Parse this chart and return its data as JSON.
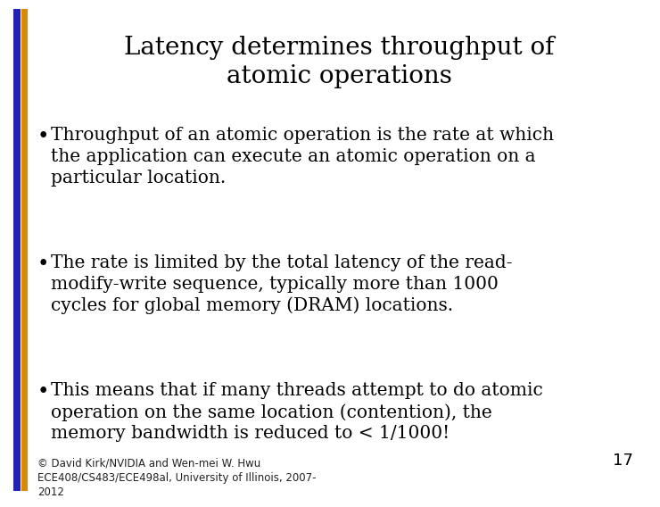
{
  "title_line1": "Latency determines throughput of",
  "title_line2": "atomic operations",
  "bullet1_line1": "Throughput of an atomic operation is the rate at which",
  "bullet1_line2": "the application can execute an atomic operation on a",
  "bullet1_line3": "particular location.",
  "bullet2_line1": "The rate is limited by the total latency of the read-",
  "bullet2_line2": "modify-write sequence, typically more than 1000",
  "bullet2_line3": "cycles for global memory (DRAM) locations.",
  "bullet3_line1": "This means that if many threads attempt to do atomic",
  "bullet3_line2": "operation on the same location (contention), the",
  "bullet3_line3": "memory bandwidth is reduced to < 1/1000!",
  "footer_line1": "© David Kirk/NVIDIA and Wen-mei W. Hwu",
  "footer_line2": "ECE408/CS483/ECE498al, University of Illinois, 2007-",
  "footer_line3": "2012",
  "slide_number": "17",
  "bg_color": "#ffffff",
  "text_color": "#000000",
  "bar_color_blue": "#2222bb",
  "bar_color_orange": "#dd8800",
  "footer_color": "#222222",
  "title_fontsize": 20,
  "bullet_fontsize": 14.5,
  "footer_fontsize": 8.5,
  "slide_num_fontsize": 13
}
